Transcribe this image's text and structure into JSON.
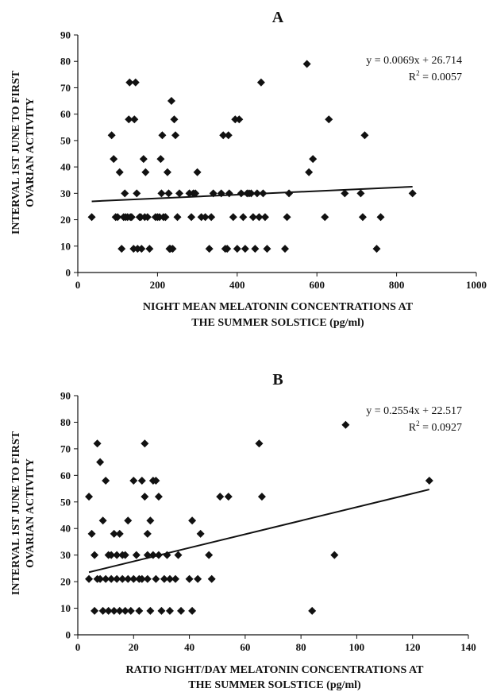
{
  "chart_data": [
    {
      "type": "scatter",
      "panel_label": "A",
      "xlabel_lines": [
        "NIGHT MEAN MELATONIN CONCENTRATIONS AT",
        "THE SUMMER SOLSTICE (pg/ml)"
      ],
      "ylabel_lines": [
        "INTERVAL 1ST JUNE TO FIRST",
        "OVARIAN ACTIVITY"
      ],
      "xlim": [
        0,
        1000
      ],
      "ylim": [
        0,
        90
      ],
      "xticks": [
        0,
        200,
        400,
        600,
        800,
        1000
      ],
      "yticks": [
        0,
        10,
        20,
        30,
        40,
        50,
        60,
        70,
        80,
        90
      ],
      "marker": "diamond",
      "grid": false,
      "trendline": {
        "slope": 0.0069,
        "intercept": 26.714,
        "x_range": [
          35,
          840
        ]
      },
      "equation": "y = 0.0069x + 26.714",
      "r2_prefix": "R",
      "r2_sup": "2",
      "r2_value": " = 0.0057",
      "points": [
        [
          35,
          21
        ],
        [
          85,
          52
        ],
        [
          90,
          43
        ],
        [
          95,
          21
        ],
        [
          100,
          21
        ],
        [
          105,
          38
        ],
        [
          110,
          9
        ],
        [
          115,
          21
        ],
        [
          118,
          30
        ],
        [
          120,
          21
        ],
        [
          125,
          21
        ],
        [
          128,
          58
        ],
        [
          130,
          72
        ],
        [
          132,
          21
        ],
        [
          135,
          21
        ],
        [
          140,
          9
        ],
        [
          142,
          58
        ],
        [
          145,
          72
        ],
        [
          148,
          30
        ],
        [
          150,
          9
        ],
        [
          155,
          21
        ],
        [
          158,
          21
        ],
        [
          160,
          9
        ],
        [
          165,
          43
        ],
        [
          168,
          21
        ],
        [
          170,
          38
        ],
        [
          175,
          21
        ],
        [
          180,
          9
        ],
        [
          195,
          21
        ],
        [
          200,
          21
        ],
        [
          205,
          21
        ],
        [
          208,
          43
        ],
        [
          210,
          30
        ],
        [
          212,
          52
        ],
        [
          215,
          21
        ],
        [
          220,
          21
        ],
        [
          225,
          38
        ],
        [
          228,
          30
        ],
        [
          230,
          9
        ],
        [
          232,
          9
        ],
        [
          235,
          65
        ],
        [
          238,
          9
        ],
        [
          242,
          58
        ],
        [
          245,
          52
        ],
        [
          250,
          21
        ],
        [
          255,
          30
        ],
        [
          280,
          30
        ],
        [
          285,
          21
        ],
        [
          290,
          30
        ],
        [
          295,
          30
        ],
        [
          300,
          38
        ],
        [
          310,
          21
        ],
        [
          320,
          21
        ],
        [
          330,
          9
        ],
        [
          335,
          21
        ],
        [
          340,
          30
        ],
        [
          360,
          30
        ],
        [
          365,
          52
        ],
        [
          370,
          9
        ],
        [
          375,
          9
        ],
        [
          378,
          52
        ],
        [
          380,
          30
        ],
        [
          390,
          21
        ],
        [
          395,
          58
        ],
        [
          400,
          9
        ],
        [
          405,
          58
        ],
        [
          410,
          30
        ],
        [
          415,
          21
        ],
        [
          420,
          9
        ],
        [
          425,
          30
        ],
        [
          430,
          30
        ],
        [
          435,
          30
        ],
        [
          440,
          21
        ],
        [
          445,
          9
        ],
        [
          450,
          30
        ],
        [
          455,
          21
        ],
        [
          460,
          72
        ],
        [
          465,
          30
        ],
        [
          470,
          21
        ],
        [
          475,
          9
        ],
        [
          520,
          9
        ],
        [
          525,
          21
        ],
        [
          530,
          30
        ],
        [
          575,
          79
        ],
        [
          580,
          38
        ],
        [
          590,
          43
        ],
        [
          620,
          21
        ],
        [
          630,
          58
        ],
        [
          670,
          30
        ],
        [
          710,
          30
        ],
        [
          715,
          21
        ],
        [
          720,
          52
        ],
        [
          750,
          9
        ],
        [
          760,
          21
        ],
        [
          840,
          30
        ]
      ]
    },
    {
      "type": "scatter",
      "panel_label": "B",
      "xlabel_lines": [
        "RATIO NIGHT/DAY MELATONIN CONCENTRATIONS AT",
        "THE SUMMER SOLSTICE (pg/ml)"
      ],
      "ylabel_lines": [
        "INTERVAL 1ST JUNE TO FIRST",
        "OVARIAN ACTIVITY"
      ],
      "xlim": [
        0,
        140
      ],
      "ylim": [
        0,
        90
      ],
      "xticks": [
        0,
        20,
        40,
        60,
        80,
        100,
        120,
        140
      ],
      "yticks": [
        0,
        10,
        20,
        30,
        40,
        50,
        60,
        70,
        80,
        90
      ],
      "marker": "diamond",
      "grid": false,
      "trendline": {
        "slope": 0.2554,
        "intercept": 22.517,
        "x_range": [
          4,
          126
        ]
      },
      "equation": "y = 0.2554x + 22.517",
      "r2_prefix": "R",
      "r2_sup": "2",
      "r2_value": " = 0.0927",
      "points": [
        [
          4,
          21
        ],
        [
          4,
          52
        ],
        [
          5,
          38
        ],
        [
          6,
          9
        ],
        [
          6,
          30
        ],
        [
          7,
          72
        ],
        [
          7,
          21
        ],
        [
          8,
          65
        ],
        [
          8,
          21
        ],
        [
          9,
          43
        ],
        [
          9,
          9
        ],
        [
          10,
          58
        ],
        [
          10,
          21
        ],
        [
          11,
          9
        ],
        [
          11,
          30
        ],
        [
          12,
          21
        ],
        [
          12,
          30
        ],
        [
          13,
          9
        ],
        [
          13,
          38
        ],
        [
          14,
          21
        ],
        [
          14,
          30
        ],
        [
          15,
          38
        ],
        [
          15,
          9
        ],
        [
          16,
          21
        ],
        [
          16,
          30
        ],
        [
          17,
          30
        ],
        [
          17,
          9
        ],
        [
          18,
          43
        ],
        [
          18,
          21
        ],
        [
          19,
          9
        ],
        [
          20,
          58
        ],
        [
          20,
          21
        ],
        [
          21,
          30
        ],
        [
          22,
          21
        ],
        [
          22,
          9
        ],
        [
          23,
          58
        ],
        [
          23,
          21
        ],
        [
          24,
          72
        ],
        [
          24,
          52
        ],
        [
          25,
          38
        ],
        [
          25,
          21
        ],
        [
          25,
          30
        ],
        [
          26,
          9
        ],
        [
          26,
          43
        ],
        [
          27,
          58
        ],
        [
          27,
          30
        ],
        [
          28,
          58
        ],
        [
          28,
          21
        ],
        [
          29,
          52
        ],
        [
          29,
          30
        ],
        [
          30,
          9
        ],
        [
          31,
          21
        ],
        [
          32,
          30
        ],
        [
          33,
          9
        ],
        [
          33,
          21
        ],
        [
          35,
          21
        ],
        [
          36,
          30
        ],
        [
          37,
          9
        ],
        [
          40,
          21
        ],
        [
          41,
          43
        ],
        [
          41,
          9
        ],
        [
          43,
          21
        ],
        [
          44,
          38
        ],
        [
          47,
          30
        ],
        [
          48,
          21
        ],
        [
          51,
          52
        ],
        [
          54,
          52
        ],
        [
          65,
          72
        ],
        [
          66,
          52
        ],
        [
          84,
          9
        ],
        [
          92,
          30
        ],
        [
          96,
          79
        ],
        [
          126,
          58
        ]
      ]
    }
  ]
}
